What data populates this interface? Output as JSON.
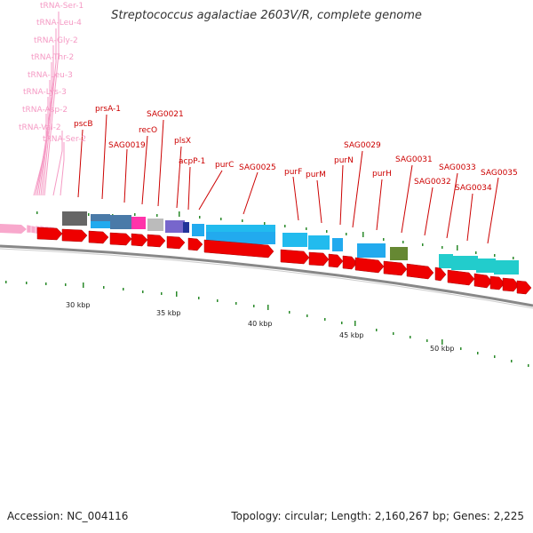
{
  "title": "Streptococcus agalactiae 2603V/R, complete genome",
  "footer": {
    "accession": "Accession: NC_004116",
    "summary": "Topology: circular; Length: 2,160,267 bp; Genes: 2,225"
  },
  "colors": {
    "gene_label": "#cc0000",
    "trna_label": "#f59ac4",
    "cds": "#ee0000",
    "trna": "#f8a8cc",
    "backbone": "#999999"
  },
  "trna_labels": [
    "tRNA-Ser-1",
    "tRNA-Leu-4",
    "tRNA-Gly-2",
    "tRNA-Thr-2",
    "tRNA-Leu-3",
    "tRNA-Lys-3",
    "tRNA-Asp-2",
    "tRNA-Val-2",
    "tRNA-Ser-2"
  ],
  "gene_labels": [
    "pscB",
    "prsA-1",
    "SAG0019",
    "recO",
    "SAG0021",
    "plsX",
    "acpP-1",
    "purC",
    "SAG0025",
    "purF",
    "purM",
    "purN",
    "SAG0029",
    "purH",
    "SAG0031",
    "SAG0032",
    "SAG0033",
    "SAG0034",
    "SAG0035"
  ],
  "ticks": [
    "30 kbp",
    "35 kbp",
    "40 kbp",
    "45 kbp",
    "50 kbp"
  ]
}
